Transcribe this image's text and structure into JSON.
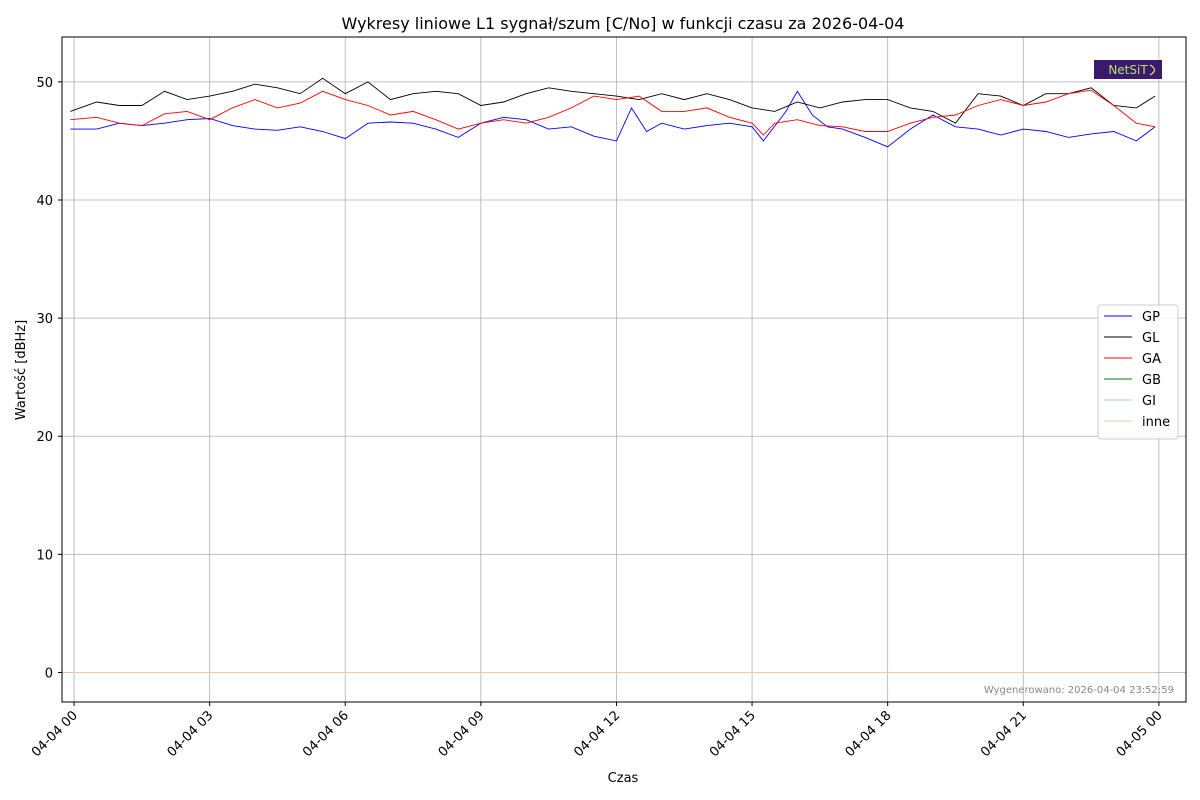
{
  "chart_data": {
    "type": "line",
    "title": "Wykresy liniowe L1 sygnał/szum [C/No] w funkcji czasu za 2026-04-04",
    "xlabel": "Czas",
    "ylabel": "Wartość [dBHz]",
    "xlim": [
      "2026-04-03T23:44",
      "2026-04-05T00:36"
    ],
    "ylim": [
      -2.5,
      53.8
    ],
    "xticks": [
      {
        "t": "2026-04-04T00:00",
        "label": "04-04 00"
      },
      {
        "t": "2026-04-04T03:00",
        "label": "04-04 03"
      },
      {
        "t": "2026-04-04T06:00",
        "label": "04-04 06"
      },
      {
        "t": "2026-04-04T09:00",
        "label": "04-04 09"
      },
      {
        "t": "2026-04-04T12:00",
        "label": "04-04 12"
      },
      {
        "t": "2026-04-04T15:00",
        "label": "04-04 15"
      },
      {
        "t": "2026-04-04T18:00",
        "label": "04-04 18"
      },
      {
        "t": "2026-04-04T21:00",
        "label": "04-04 21"
      },
      {
        "t": "2026-04-05T00:00",
        "label": "04-05 00"
      }
    ],
    "yticks": [
      0,
      10,
      20,
      30,
      40,
      50
    ],
    "grid": true,
    "legend_position": "center-right",
    "footer": "Wygenerowano: 2026-04-04 23:52:59",
    "logo_text": "NetSiT",
    "series": [
      {
        "name": "GP",
        "color": "#0000ff",
        "points": [
          [
            "2026-04-03T23:55",
            46.0
          ],
          [
            "2026-04-04T00:30",
            46.0
          ],
          [
            "2026-04-04T01:00",
            46.5
          ],
          [
            "2026-04-04T01:30",
            46.3
          ],
          [
            "2026-04-04T02:00",
            46.5
          ],
          [
            "2026-04-04T02:30",
            46.8
          ],
          [
            "2026-04-04T03:00",
            46.9
          ],
          [
            "2026-04-04T03:30",
            46.3
          ],
          [
            "2026-04-04T04:00",
            46.0
          ],
          [
            "2026-04-04T04:30",
            45.9
          ],
          [
            "2026-04-04T05:00",
            46.2
          ],
          [
            "2026-04-04T05:30",
            45.8
          ],
          [
            "2026-04-04T06:00",
            45.2
          ],
          [
            "2026-04-04T06:30",
            46.5
          ],
          [
            "2026-04-04T07:00",
            46.6
          ],
          [
            "2026-04-04T07:30",
            46.5
          ],
          [
            "2026-04-04T08:00",
            46.0
          ],
          [
            "2026-04-04T08:30",
            45.3
          ],
          [
            "2026-04-04T09:00",
            46.5
          ],
          [
            "2026-04-04T09:30",
            47.0
          ],
          [
            "2026-04-04T10:00",
            46.8
          ],
          [
            "2026-04-04T10:30",
            46.0
          ],
          [
            "2026-04-04T11:00",
            46.2
          ],
          [
            "2026-04-04T11:30",
            45.4
          ],
          [
            "2026-04-04T12:00",
            45.0
          ],
          [
            "2026-04-04T12:20",
            47.8
          ],
          [
            "2026-04-04T12:40",
            45.8
          ],
          [
            "2026-04-04T13:00",
            46.5
          ],
          [
            "2026-04-04T13:30",
            46.0
          ],
          [
            "2026-04-04T14:00",
            46.3
          ],
          [
            "2026-04-04T14:30",
            46.5
          ],
          [
            "2026-04-04T15:00",
            46.2
          ],
          [
            "2026-04-04T15:15",
            45.0
          ],
          [
            "2026-04-04T15:45",
            47.5
          ],
          [
            "2026-04-04T16:00",
            49.2
          ],
          [
            "2026-04-04T16:20",
            47.2
          ],
          [
            "2026-04-04T16:40",
            46.2
          ],
          [
            "2026-04-04T17:00",
            46.0
          ],
          [
            "2026-04-04T17:30",
            45.3
          ],
          [
            "2026-04-04T18:00",
            44.5
          ],
          [
            "2026-04-04T18:30",
            46.0
          ],
          [
            "2026-04-04T19:00",
            47.2
          ],
          [
            "2026-04-04T19:30",
            46.2
          ],
          [
            "2026-04-04T20:00",
            46.0
          ],
          [
            "2026-04-04T20:30",
            45.5
          ],
          [
            "2026-04-04T21:00",
            46.0
          ],
          [
            "2026-04-04T21:30",
            45.8
          ],
          [
            "2026-04-04T22:00",
            45.3
          ],
          [
            "2026-04-04T22:30",
            45.6
          ],
          [
            "2026-04-04T23:00",
            45.8
          ],
          [
            "2026-04-04T23:30",
            45.0
          ],
          [
            "2026-04-04T23:55",
            46.2
          ]
        ]
      },
      {
        "name": "GL",
        "color": "#000000",
        "points": [
          [
            "2026-04-03T23:55",
            47.5
          ],
          [
            "2026-04-04T00:30",
            48.3
          ],
          [
            "2026-04-04T01:00",
            48.0
          ],
          [
            "2026-04-04T01:30",
            48.0
          ],
          [
            "2026-04-04T02:00",
            49.2
          ],
          [
            "2026-04-04T02:30",
            48.5
          ],
          [
            "2026-04-04T03:00",
            48.8
          ],
          [
            "2026-04-04T03:30",
            49.2
          ],
          [
            "2026-04-04T04:00",
            49.8
          ],
          [
            "2026-04-04T04:30",
            49.5
          ],
          [
            "2026-04-04T05:00",
            49.0
          ],
          [
            "2026-04-04T05:30",
            50.3
          ],
          [
            "2026-04-04T06:00",
            49.0
          ],
          [
            "2026-04-04T06:30",
            50.0
          ],
          [
            "2026-04-04T07:00",
            48.5
          ],
          [
            "2026-04-04T07:30",
            49.0
          ],
          [
            "2026-04-04T08:00",
            49.2
          ],
          [
            "2026-04-04T08:30",
            49.0
          ],
          [
            "2026-04-04T09:00",
            48.0
          ],
          [
            "2026-04-04T09:30",
            48.3
          ],
          [
            "2026-04-04T10:00",
            49.0
          ],
          [
            "2026-04-04T10:30",
            49.5
          ],
          [
            "2026-04-04T11:00",
            49.2
          ],
          [
            "2026-04-04T11:30",
            49.0
          ],
          [
            "2026-04-04T12:00",
            48.8
          ],
          [
            "2026-04-04T12:30",
            48.5
          ],
          [
            "2026-04-04T13:00",
            49.0
          ],
          [
            "2026-04-04T13:30",
            48.5
          ],
          [
            "2026-04-04T14:00",
            49.0
          ],
          [
            "2026-04-04T14:30",
            48.5
          ],
          [
            "2026-04-04T15:00",
            47.8
          ],
          [
            "2026-04-04T15:30",
            47.5
          ],
          [
            "2026-04-04T16:00",
            48.3
          ],
          [
            "2026-04-04T16:30",
            47.8
          ],
          [
            "2026-04-04T17:00",
            48.3
          ],
          [
            "2026-04-04T17:30",
            48.5
          ],
          [
            "2026-04-04T18:00",
            48.5
          ],
          [
            "2026-04-04T18:30",
            47.8
          ],
          [
            "2026-04-04T19:00",
            47.5
          ],
          [
            "2026-04-04T19:30",
            46.5
          ],
          [
            "2026-04-04T20:00",
            49.0
          ],
          [
            "2026-04-04T20:30",
            48.8
          ],
          [
            "2026-04-04T21:00",
            48.0
          ],
          [
            "2026-04-04T21:30",
            49.0
          ],
          [
            "2026-04-04T22:00",
            49.0
          ],
          [
            "2026-04-04T22:30",
            49.5
          ],
          [
            "2026-04-04T23:00",
            48.0
          ],
          [
            "2026-04-04T23:30",
            47.8
          ],
          [
            "2026-04-04T23:55",
            48.8
          ]
        ]
      },
      {
        "name": "GA",
        "color": "#ff0000",
        "points": [
          [
            "2026-04-03T23:55",
            46.8
          ],
          [
            "2026-04-04T00:30",
            47.0
          ],
          [
            "2026-04-04T01:00",
            46.5
          ],
          [
            "2026-04-04T01:30",
            46.3
          ],
          [
            "2026-04-04T02:00",
            47.3
          ],
          [
            "2026-04-04T02:30",
            47.5
          ],
          [
            "2026-04-04T03:00",
            46.8
          ],
          [
            "2026-04-04T03:30",
            47.8
          ],
          [
            "2026-04-04T04:00",
            48.5
          ],
          [
            "2026-04-04T04:30",
            47.8
          ],
          [
            "2026-04-04T05:00",
            48.2
          ],
          [
            "2026-04-04T05:30",
            49.2
          ],
          [
            "2026-04-04T06:00",
            48.5
          ],
          [
            "2026-04-04T06:30",
            48.0
          ],
          [
            "2026-04-04T07:00",
            47.2
          ],
          [
            "2026-04-04T07:30",
            47.5
          ],
          [
            "2026-04-04T08:00",
            46.8
          ],
          [
            "2026-04-04T08:30",
            46.0
          ],
          [
            "2026-04-04T09:00",
            46.5
          ],
          [
            "2026-04-04T09:30",
            46.8
          ],
          [
            "2026-04-04T10:00",
            46.5
          ],
          [
            "2026-04-04T10:30",
            47.0
          ],
          [
            "2026-04-04T11:00",
            47.8
          ],
          [
            "2026-04-04T11:30",
            48.8
          ],
          [
            "2026-04-04T12:00",
            48.5
          ],
          [
            "2026-04-04T12:30",
            48.8
          ],
          [
            "2026-04-04T13:00",
            47.5
          ],
          [
            "2026-04-04T13:30",
            47.5
          ],
          [
            "2026-04-04T14:00",
            47.8
          ],
          [
            "2026-04-04T14:30",
            47.0
          ],
          [
            "2026-04-04T15:00",
            46.5
          ],
          [
            "2026-04-04T15:15",
            45.5
          ],
          [
            "2026-04-04T15:30",
            46.5
          ],
          [
            "2026-04-04T16:00",
            46.8
          ],
          [
            "2026-04-04T16:30",
            46.3
          ],
          [
            "2026-04-04T17:00",
            46.2
          ],
          [
            "2026-04-04T17:30",
            45.8
          ],
          [
            "2026-04-04T18:00",
            45.8
          ],
          [
            "2026-04-04T18:30",
            46.5
          ],
          [
            "2026-04-04T19:00",
            47.0
          ],
          [
            "2026-04-04T19:30",
            47.2
          ],
          [
            "2026-04-04T20:00",
            48.0
          ],
          [
            "2026-04-04T20:30",
            48.5
          ],
          [
            "2026-04-04T21:00",
            48.0
          ],
          [
            "2026-04-04T21:30",
            48.3
          ],
          [
            "2026-04-04T22:00",
            49.0
          ],
          [
            "2026-04-04T22:30",
            49.3
          ],
          [
            "2026-04-04T23:00",
            48.0
          ],
          [
            "2026-04-04T23:30",
            46.5
          ],
          [
            "2026-04-04T23:55",
            46.2
          ]
        ]
      },
      {
        "name": "GB",
        "color": "#008000",
        "points": [
          [
            "2026-04-03T23:55",
            0
          ],
          [
            "2026-04-04T23:55",
            0
          ]
        ]
      },
      {
        "name": "GI",
        "color": "#a6c8f0",
        "points": [
          [
            "2026-04-03T23:55",
            0
          ],
          [
            "2026-04-04T23:55",
            0
          ]
        ]
      },
      {
        "name": "inne",
        "color": "#f5c79a",
        "points": [
          [
            "2026-04-03T23:55",
            0
          ],
          [
            "2026-04-04T23:55",
            0
          ]
        ]
      }
    ]
  }
}
